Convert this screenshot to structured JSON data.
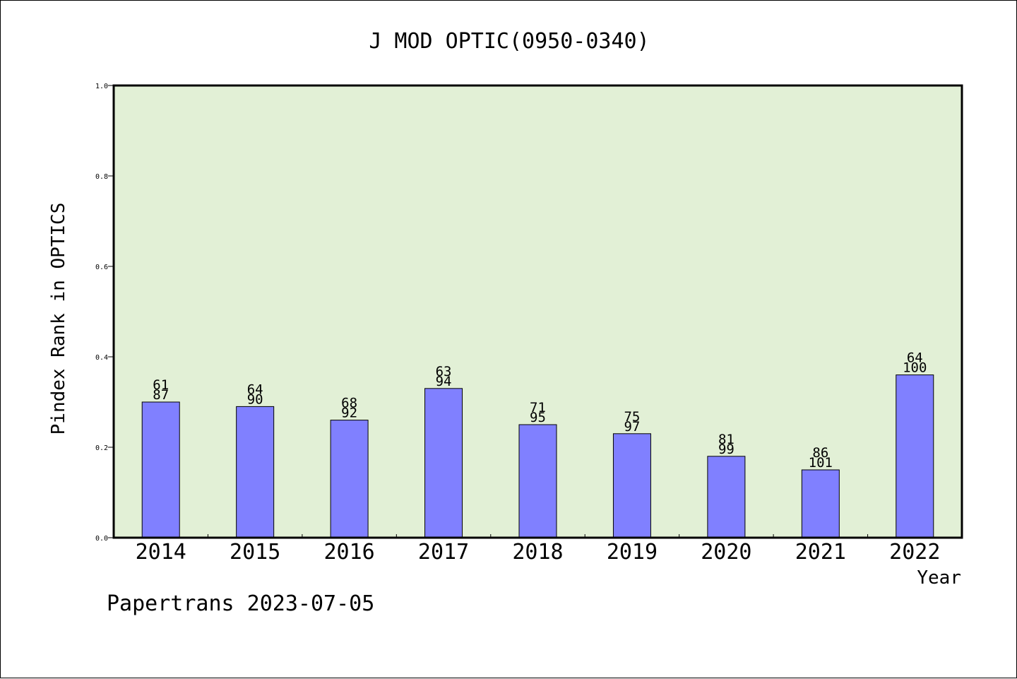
{
  "chart_data": {
    "type": "bar",
    "title": "J MOD OPTIC(0950-0340)",
    "ylabel": "Pindex Rank in OPTICS",
    "xlabel": "Year",
    "footer": "Papertrans 2023-07-05",
    "categories": [
      "2014",
      "2015",
      "2016",
      "2017",
      "2018",
      "2019",
      "2020",
      "2021",
      "2022"
    ],
    "values": [
      0.3,
      0.29,
      0.26,
      0.33,
      0.25,
      0.23,
      0.18,
      0.15,
      0.36
    ],
    "labels_top": [
      "61",
      "64",
      "68",
      "63",
      "71",
      "75",
      "81",
      "86",
      "64"
    ],
    "labels_bottom": [
      "87",
      "90",
      "92",
      "94",
      "95",
      "97",
      "99",
      "101",
      "100"
    ],
    "ylim": [
      0,
      1.0
    ],
    "yticks": [
      "0.0",
      "0.2",
      "0.4",
      "0.6",
      "0.8",
      "1.0"
    ],
    "grid": false,
    "colors": {
      "plot_background": "#e2f0d6",
      "bar_fill": "#8080ff",
      "bar_stroke": "#000000"
    }
  }
}
